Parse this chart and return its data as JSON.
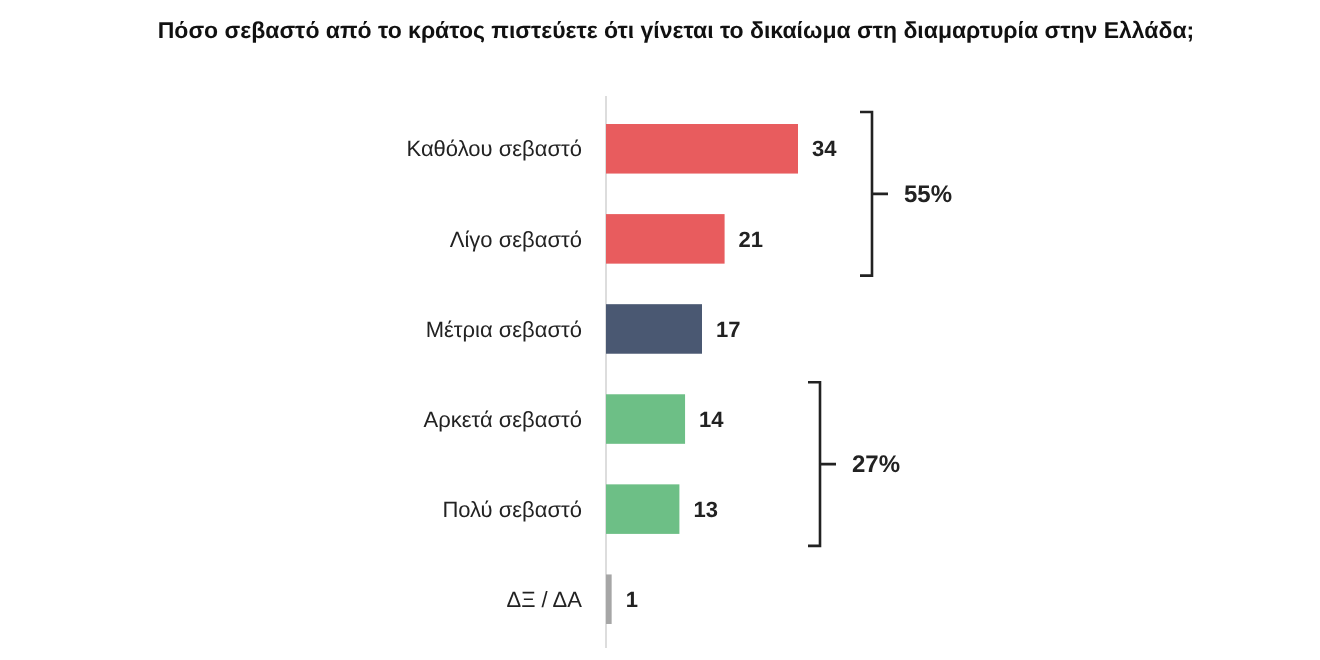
{
  "chart_data": {
    "type": "bar",
    "orientation": "horizontal",
    "title": "Πόσο σεβαστό από το κράτος πιστεύετε ότι γίνεται το δικαίωμα στη διαμαρτυρία στην Ελλάδα;",
    "categories": [
      "Καθόλου σεβαστό",
      "Λίγο σεβαστό",
      "Μέτρια σεβαστό",
      "Αρκετά σεβαστό",
      "Πολύ σεβαστό",
      "ΔΞ / ΔΑ"
    ],
    "values": [
      34,
      21,
      17,
      14,
      13,
      1
    ],
    "colors": [
      "#e85c5e",
      "#e85c5e",
      "#4a5872",
      "#6dbf86",
      "#6dbf86",
      "#a6a6a6"
    ],
    "data_labels": true,
    "annotations": [
      "55%",
      "27%"
    ]
  }
}
